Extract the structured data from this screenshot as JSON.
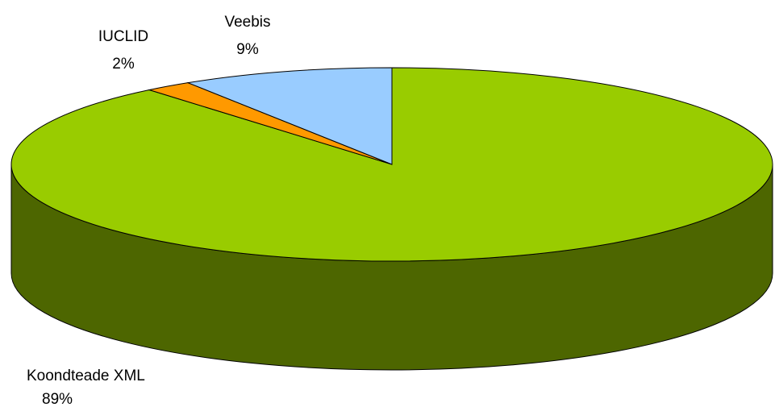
{
  "chart_data": {
    "type": "pie3d",
    "categories": [
      "Koondteade XML",
      "IUCLID",
      "Veebis"
    ],
    "values": [
      89,
      2,
      9
    ],
    "value_labels": [
      "89%",
      "2%",
      "9%"
    ],
    "colors": [
      "#99cc00",
      "#ff9900",
      "#99ccff"
    ]
  }
}
